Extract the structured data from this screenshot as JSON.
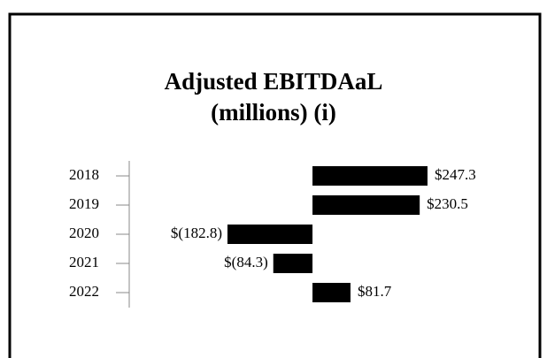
{
  "chart_data": {
    "type": "barh",
    "title": "Adjusted EBITDAaL",
    "subtitle": "(millions) (i)",
    "categories": [
      "2018",
      "2019",
      "2020",
      "2021",
      "2022"
    ],
    "values": [
      247.3,
      230.5,
      -182.8,
      -84.3,
      81.7
    ],
    "value_labels": [
      "$247.3",
      "$230.5",
      "$(182.8)",
      "$(84.3)",
      "$81.7"
    ],
    "color": "#000000"
  }
}
